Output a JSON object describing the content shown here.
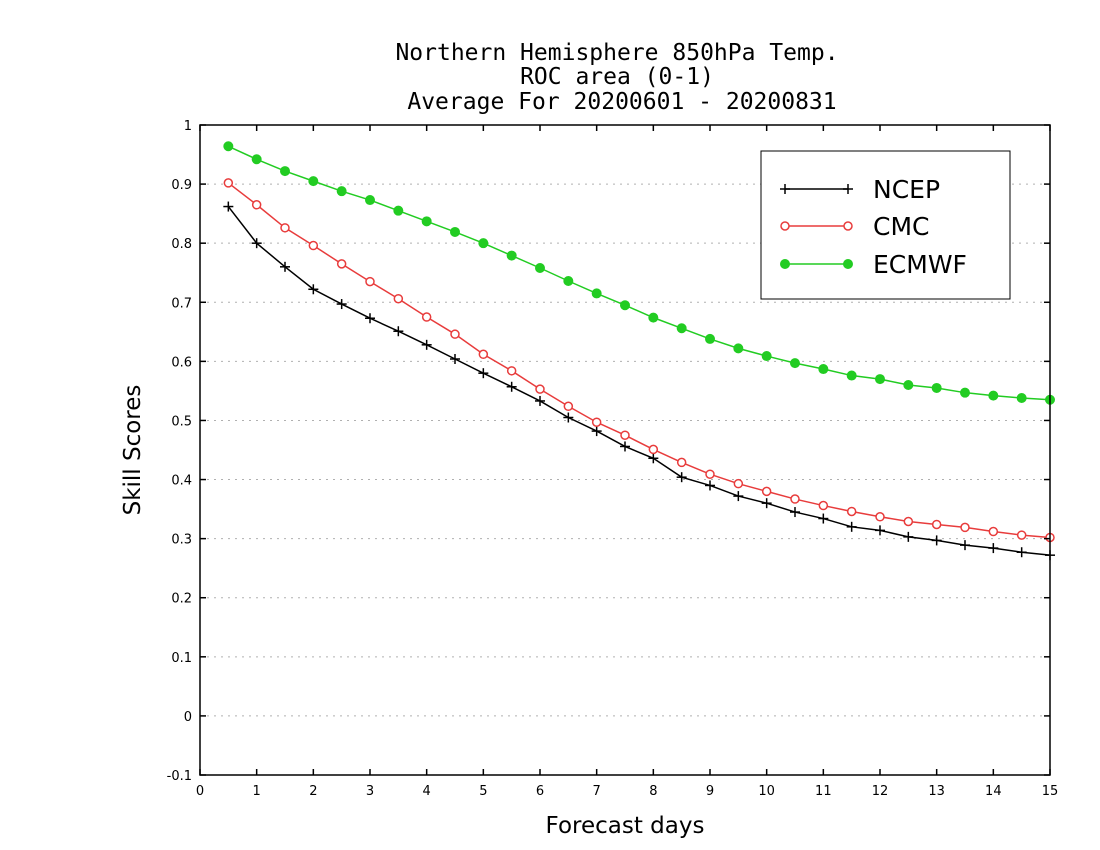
{
  "chart_data": {
    "type": "line",
    "title": [
      "Northern Hemisphere 850hPa Temp.",
      "ROC area (0-1)",
      "Average For 20200601 - 20200831"
    ],
    "xlabel": "Forecast days",
    "ylabel": "Skill Scores",
    "xlim": [
      0,
      15
    ],
    "ylim": [
      -0.1,
      1
    ],
    "x_ticks": [
      "0",
      "1",
      "2",
      "3",
      "4",
      "5",
      "6",
      "7",
      "8",
      "9",
      "10",
      "11",
      "12",
      "13",
      "14",
      "15"
    ],
    "y_ticks": [
      {
        "value": -0.1,
        "label": "-0.1"
      },
      {
        "value": 0,
        "label": "0"
      },
      {
        "value": 0.1,
        "label": "0.1"
      },
      {
        "value": 0.2,
        "label": "0.2"
      },
      {
        "value": 0.3,
        "label": "0.3"
      },
      {
        "value": 0.4,
        "label": "0.4"
      },
      {
        "value": 0.5,
        "label": "0.5"
      },
      {
        "value": 0.6,
        "label": "0.6"
      },
      {
        "value": 0.7,
        "label": "0.7"
      },
      {
        "value": 0.8,
        "label": "0.8"
      },
      {
        "value": 0.9,
        "label": "0.9"
      },
      {
        "value": 1,
        "label": "1"
      }
    ],
    "grid": "horizontal-dotted",
    "legend_position": "top-right",
    "x": [
      0.5,
      1,
      1.5,
      2,
      2.5,
      3,
      3.5,
      4,
      4.5,
      5,
      5.5,
      6,
      6.5,
      7,
      7.5,
      8,
      8.5,
      9,
      9.5,
      10,
      10.5,
      11,
      11.5,
      12,
      12.5,
      13,
      13.5,
      14,
      14.5,
      15
    ],
    "series": [
      {
        "name": "NCEP",
        "color": "#000000",
        "marker": "plus",
        "values": [
          0.862,
          0.8,
          0.76,
          0.722,
          0.697,
          0.673,
          0.651,
          0.628,
          0.604,
          0.58,
          0.557,
          0.533,
          0.505,
          0.482,
          0.456,
          0.436,
          0.404,
          0.39,
          0.372,
          0.36,
          0.345,
          0.334,
          0.32,
          0.314,
          0.303,
          0.297,
          0.289,
          0.284,
          0.277,
          0.272
        ]
      },
      {
        "name": "CMC",
        "color": "#e83c3c",
        "marker": "open-circle",
        "values": [
          0.902,
          0.865,
          0.826,
          0.796,
          0.765,
          0.735,
          0.706,
          0.675,
          0.646,
          0.612,
          0.584,
          0.553,
          0.524,
          0.497,
          0.475,
          0.451,
          0.429,
          0.409,
          0.393,
          0.38,
          0.367,
          0.356,
          0.346,
          0.337,
          0.329,
          0.324,
          0.319,
          0.312,
          0.306,
          0.302
        ]
      },
      {
        "name": "ECMWF",
        "color": "#22cc22",
        "marker": "filled-circle",
        "values": [
          0.964,
          0.942,
          0.922,
          0.905,
          0.888,
          0.873,
          0.855,
          0.837,
          0.819,
          0.8,
          0.779,
          0.758,
          0.736,
          0.715,
          0.695,
          0.674,
          0.656,
          0.638,
          0.622,
          0.609,
          0.597,
          0.587,
          0.576,
          0.57,
          0.56,
          0.555,
          0.547,
          0.542,
          0.538,
          0.535
        ]
      }
    ]
  }
}
